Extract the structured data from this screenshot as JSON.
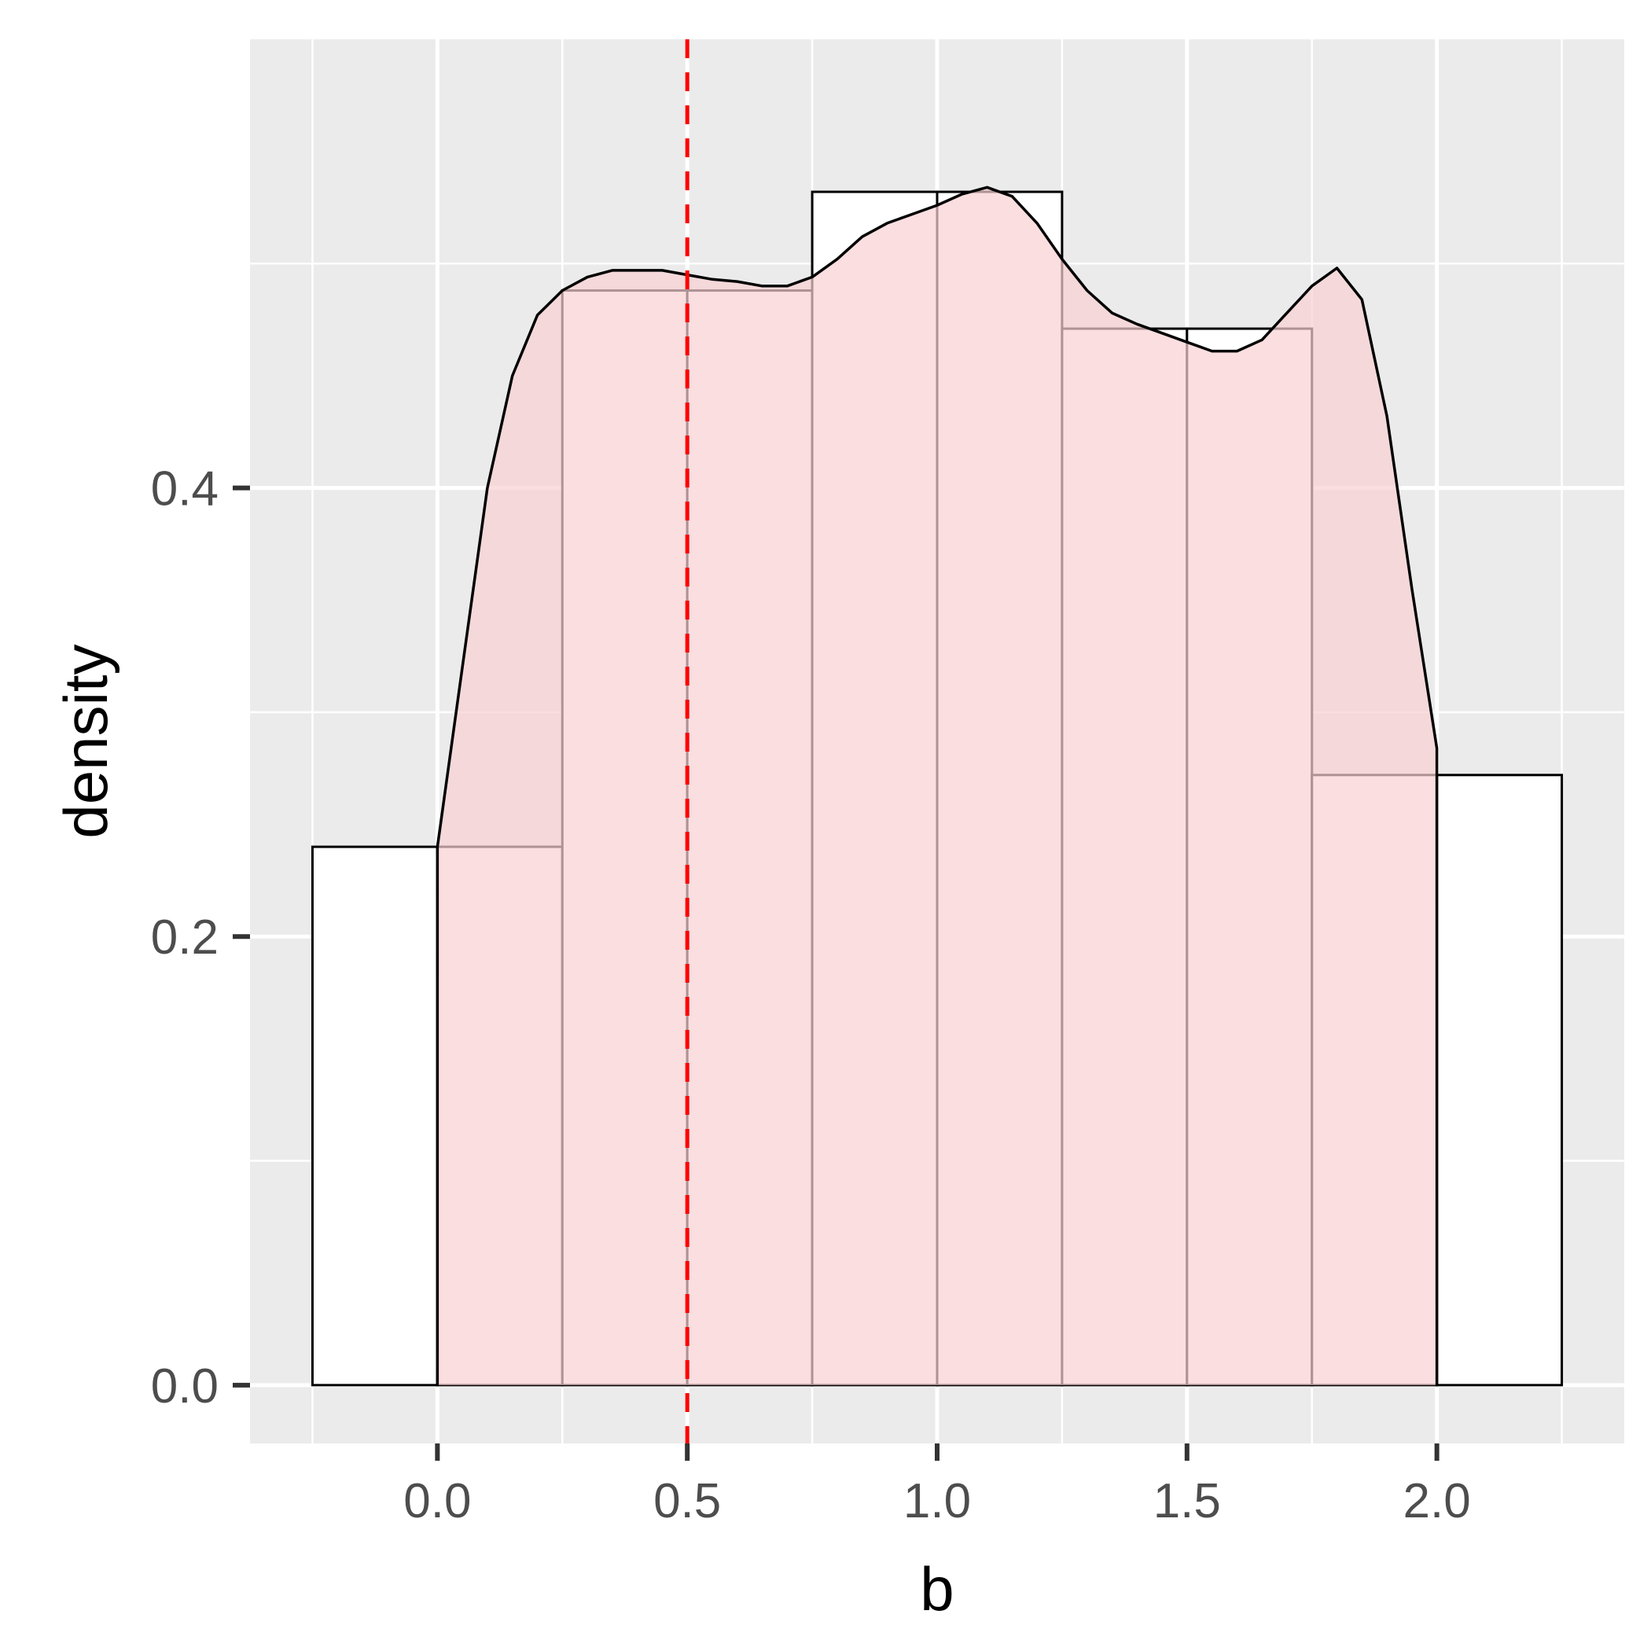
{
  "chart_data": {
    "type": "bar",
    "xlabel": "b",
    "ylabel": "density",
    "xlim": [
      -0.375,
      2.375
    ],
    "ylim": [
      -0.026,
      0.6
    ],
    "x_ticks": [
      0.0,
      0.5,
      1.0,
      1.5,
      2.0
    ],
    "x_tick_labels": [
      "0.0",
      "0.5",
      "1.0",
      "1.5",
      "2.0"
    ],
    "y_ticks": [
      0.0,
      0.2,
      0.4
    ],
    "y_tick_labels": [
      "0.0",
      "0.2",
      "0.4"
    ],
    "grid": true,
    "histogram": {
      "bin_edges": [
        -0.25,
        0.0,
        0.25,
        0.5,
        0.75,
        1.0,
        1.25,
        1.5,
        1.75,
        2.0,
        2.25
      ],
      "densities": [
        0.24,
        0.24,
        0.488,
        0.488,
        0.532,
        0.532,
        0.471,
        0.471,
        0.272,
        0.272
      ]
    },
    "density_curve": {
      "x": [
        0.0,
        0.05,
        0.1,
        0.15,
        0.2,
        0.25,
        0.3,
        0.35,
        0.4,
        0.45,
        0.5,
        0.55,
        0.6,
        0.65,
        0.7,
        0.75,
        0.8,
        0.85,
        0.9,
        0.95,
        1.0,
        1.05,
        1.1,
        1.15,
        1.2,
        1.25,
        1.3,
        1.35,
        1.4,
        1.45,
        1.5,
        1.55,
        1.6,
        1.65,
        1.7,
        1.75,
        1.8,
        1.85,
        1.9,
        1.95,
        2.0
      ],
      "y": [
        0.24,
        0.32,
        0.4,
        0.45,
        0.477,
        0.488,
        0.494,
        0.497,
        0.497,
        0.497,
        0.495,
        0.493,
        0.492,
        0.49,
        0.49,
        0.494,
        0.502,
        0.512,
        0.518,
        0.522,
        0.526,
        0.531,
        0.534,
        0.53,
        0.518,
        0.502,
        0.488,
        0.478,
        0.473,
        0.469,
        0.465,
        0.461,
        0.461,
        0.466,
        0.478,
        0.49,
        0.498,
        0.484,
        0.432,
        0.355,
        0.284
      ],
      "fill": "#f8d0d3"
    },
    "reference_line": {
      "x": 0.5,
      "color": "#ff0000",
      "style": "dashed"
    },
    "colors": {
      "panel_background": "#ebebeb",
      "grid": "#ffffff",
      "bar_fill": "#ffffff",
      "bar_stroke": "#000000",
      "density_overlay": "#f8d0d3"
    }
  }
}
